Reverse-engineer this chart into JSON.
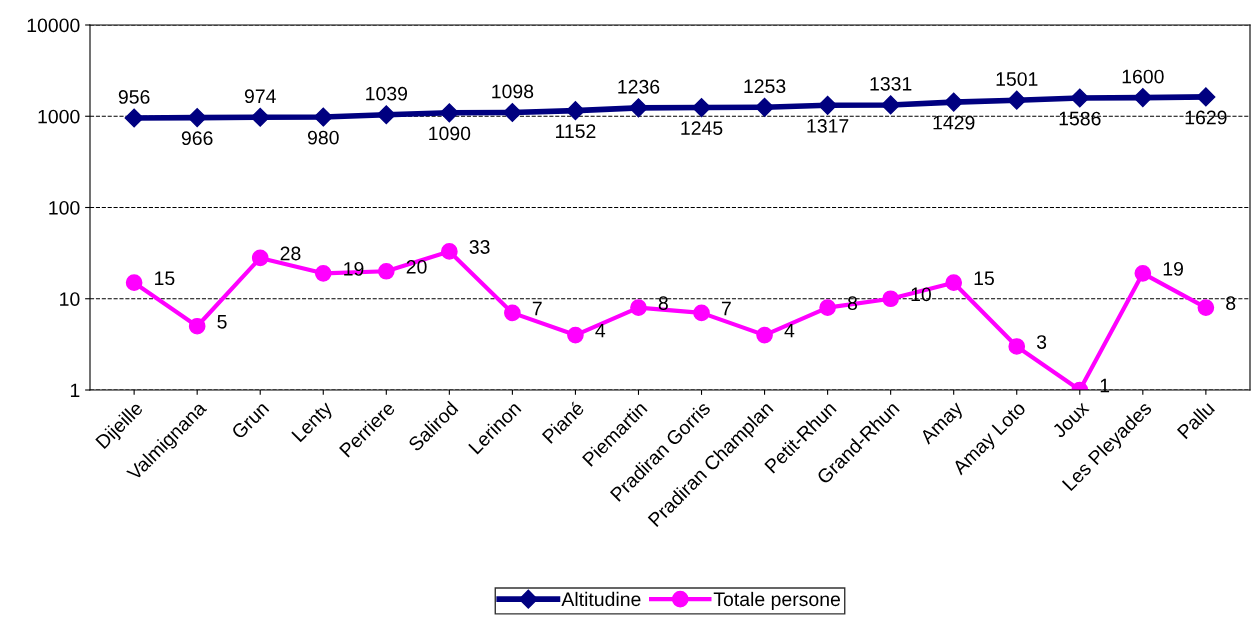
{
  "chart_data": {
    "type": "line",
    "categories": [
      "Dijeille",
      "Valmignana",
      "Grun",
      "Lenty",
      "Perriere",
      "Salirod",
      "Lerinon",
      "Piané",
      "Piemartin",
      "Pradiran Gorris",
      "Pradiran Champlan",
      "Petit-Rhun",
      "Grand-Rhun",
      "Amay",
      "Amay Loto",
      "Joux",
      "Les Pleyades",
      "Pallu"
    ],
    "series": [
      {
        "name": "Altitudine",
        "color": "#000080",
        "marker": "diamond",
        "values": [
          956,
          966,
          974,
          980,
          1039,
          1090,
          1098,
          1152,
          1236,
          1245,
          1253,
          1317,
          1331,
          1429,
          1501,
          1586,
          1600,
          1629
        ]
      },
      {
        "name": "Totale persone",
        "color": "#ff00ff",
        "marker": "circle",
        "values": [
          15,
          5,
          28,
          19,
          20,
          33,
          7,
          4,
          8,
          7,
          4,
          8,
          10,
          15,
          3,
          1,
          19,
          8
        ]
      }
    ],
    "log": "y",
    "ylim": [
      1,
      10000
    ],
    "yticks": [
      1,
      10,
      100,
      1000,
      10000
    ],
    "grid": "y",
    "legend": "bottom",
    "data_labels": true,
    "line_style": "solid"
  }
}
